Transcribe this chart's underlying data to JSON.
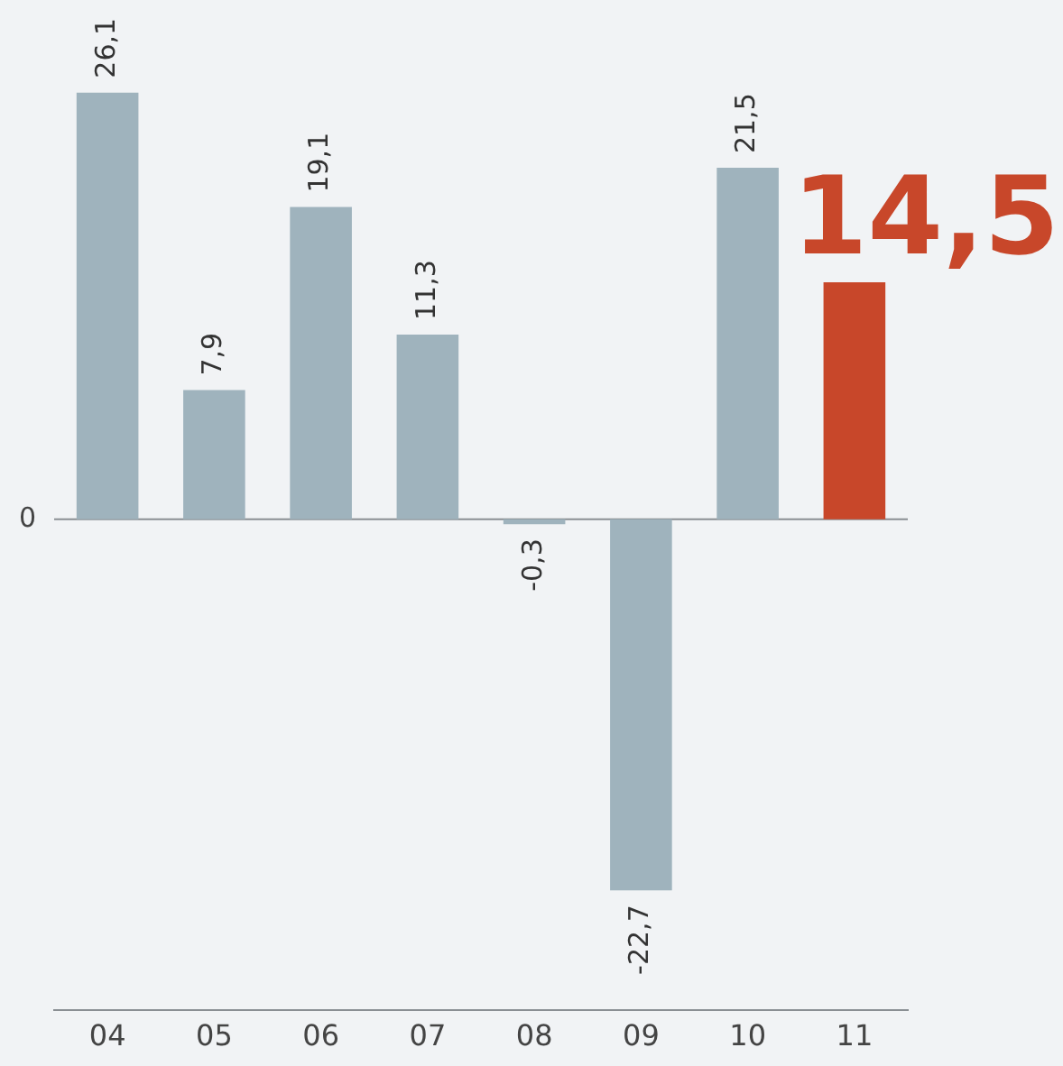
{
  "chart_data": {
    "type": "bar",
    "categories": [
      "04",
      "05",
      "06",
      "07",
      "08",
      "09",
      "10",
      "11"
    ],
    "values": [
      26.1,
      7.9,
      19.1,
      11.3,
      -0.3,
      -22.7,
      21.5,
      14.5
    ],
    "colors": [
      "#9fb3bd",
      "#9fb3bd",
      "#9fb3bd",
      "#9fb3bd",
      "#9fb3bd",
      "#9fb3bd",
      "#9fb3bd",
      "#c8472a"
    ],
    "value_labels": [
      "26,1",
      "7,9",
      "19,1",
      "11,3",
      "-0,3",
      "-22,7",
      "21,5",
      "14,5"
    ],
    "annotations": [
      "0"
    ],
    "ref_lines": [
      {
        "axis": "y",
        "value": 0,
        "color": "#8a8f93"
      }
    ],
    "grid": false,
    "legend": false
  }
}
